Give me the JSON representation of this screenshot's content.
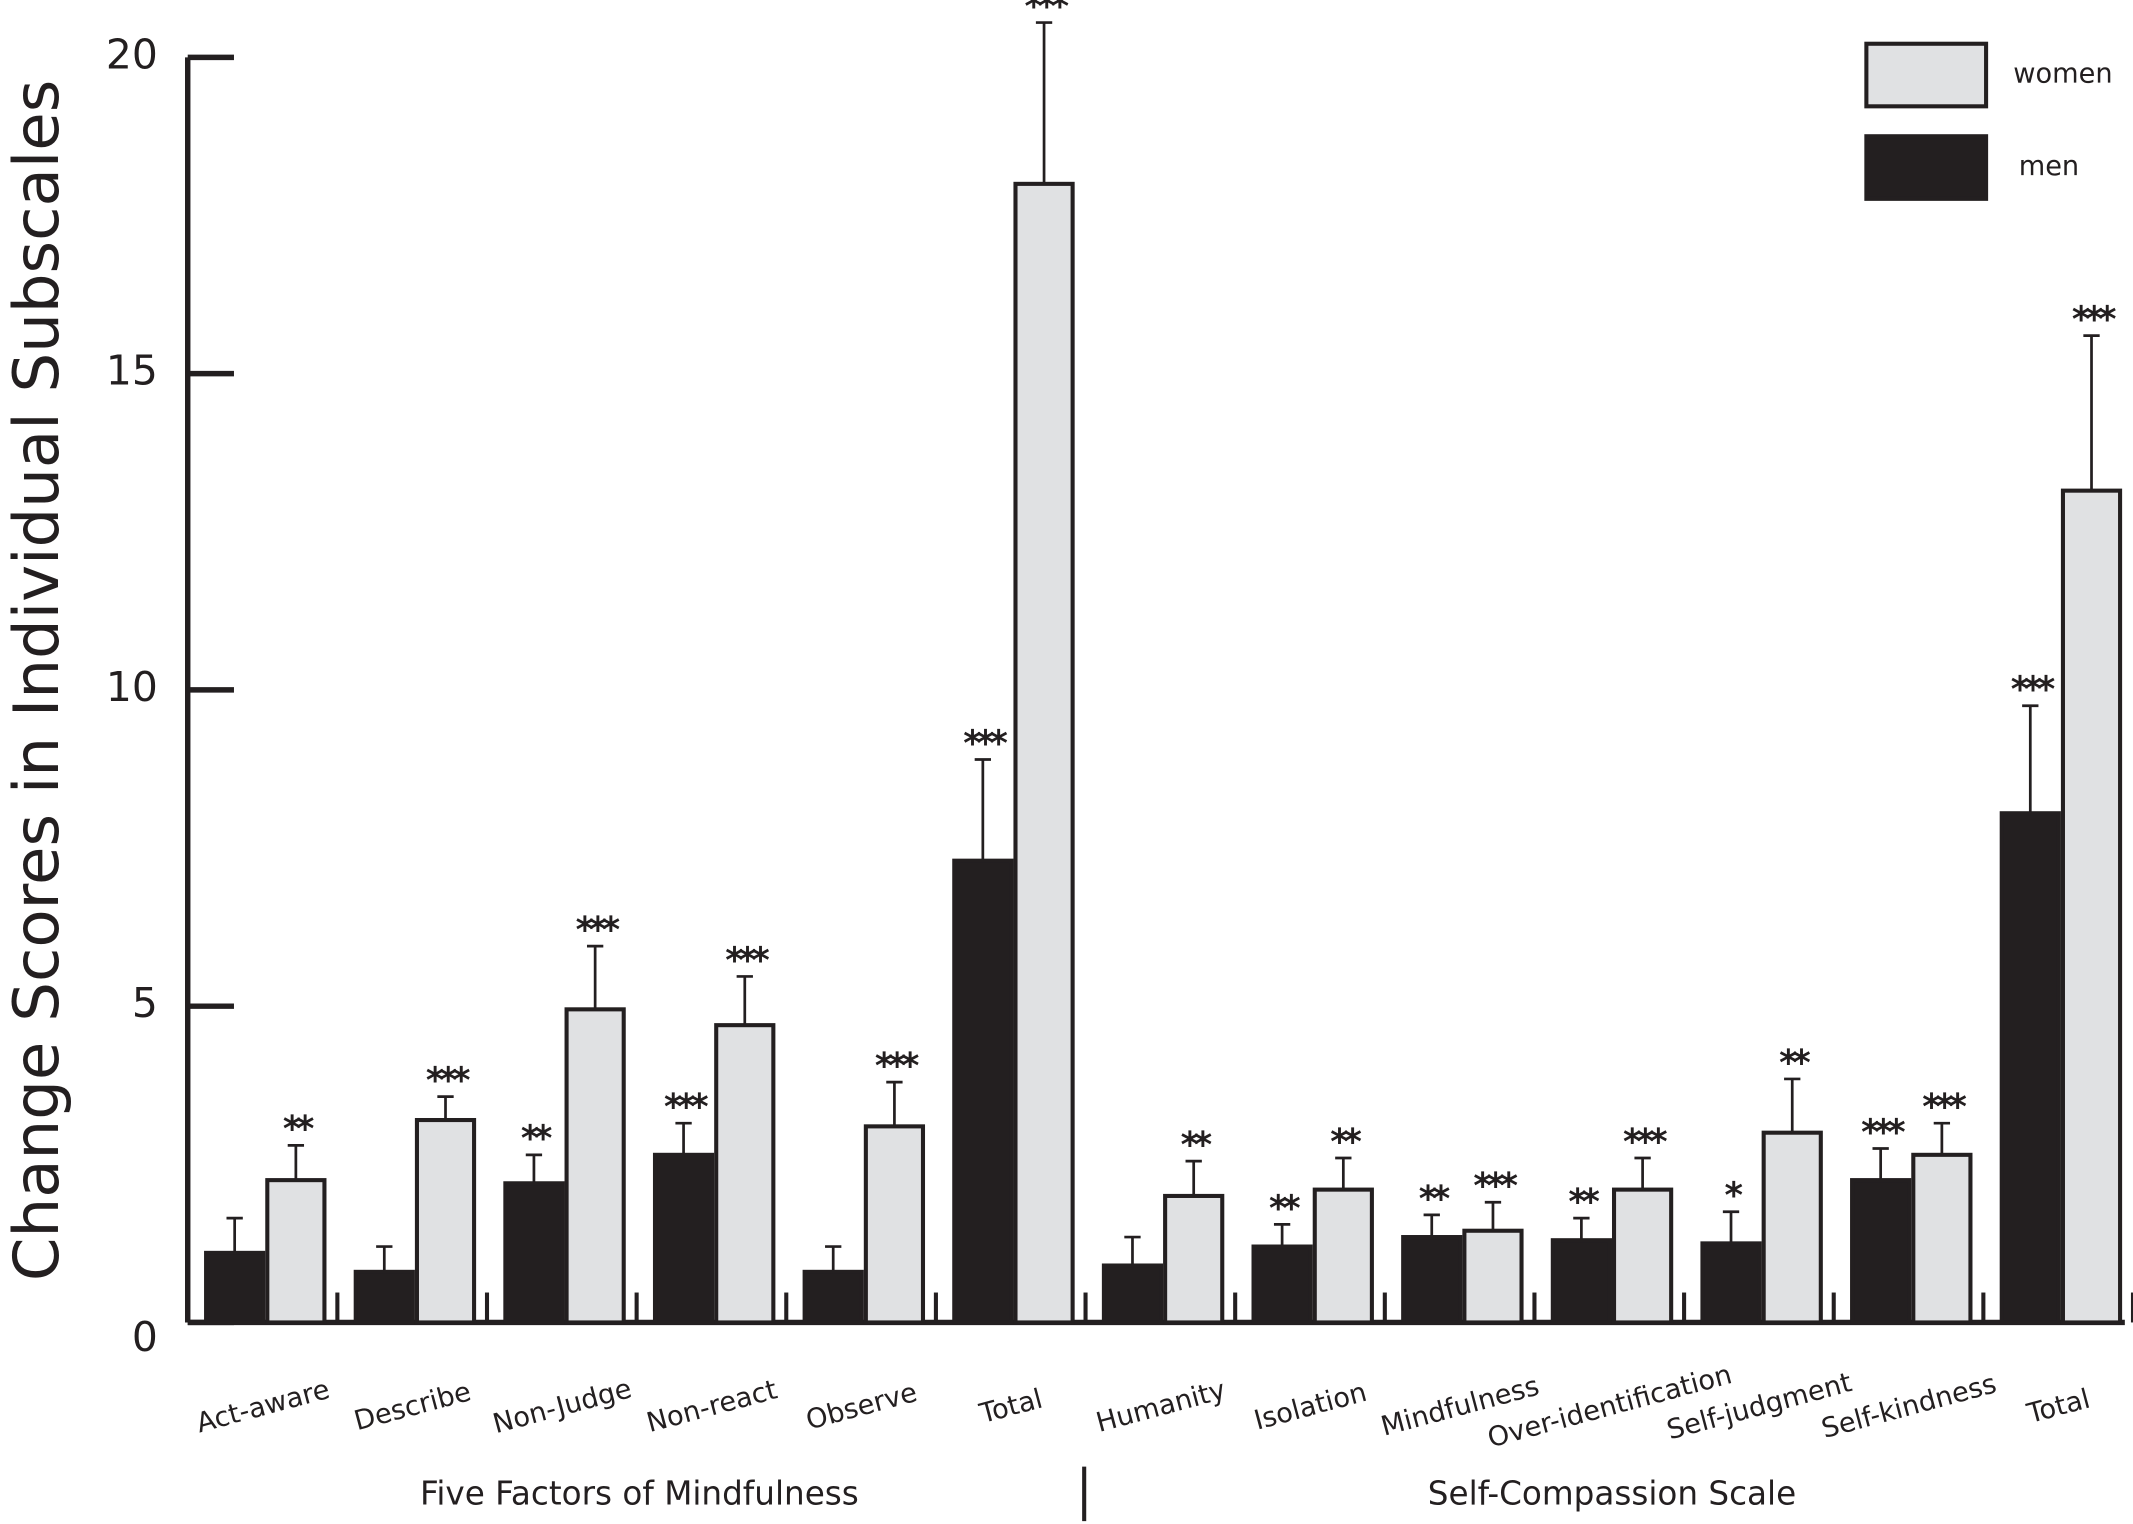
{
  "chart_data": {
    "type": "bar",
    "y_label": "Change Scores in Individual Subscales",
    "categories": [
      "Act-aware",
      "Describe",
      "Non-Judge",
      "Non-react",
      "Observe",
      "Total",
      "Humanity",
      "Isolation",
      "Mindfulness",
      "Over-identification",
      "Self-judgment",
      "Self-kindness",
      "Total"
    ],
    "category_groups": [
      {
        "label": "Five Factors of Mindfulness",
        "count": 6
      },
      {
        "label": "Self-Compassion Scale",
        "count": 7
      }
    ],
    "series": [
      {
        "name": "men",
        "color": "#231f20",
        "values": [
          1.1,
          0.8,
          2.2,
          2.65,
          0.8,
          7.3,
          0.9,
          1.2,
          1.35,
          1.3,
          1.25,
          2.25,
          8.05
        ],
        "errors": [
          0.55,
          0.4,
          0.45,
          0.5,
          0.4,
          1.6,
          0.45,
          0.35,
          0.35,
          0.35,
          0.5,
          0.5,
          1.7
        ],
        "significance": [
          null,
          null,
          "**",
          "***",
          null,
          "***",
          null,
          "**",
          "**",
          "**",
          "*",
          "***",
          "***"
        ]
      },
      {
        "name": "women",
        "color": "#e0e1e3",
        "values": [
          2.25,
          3.2,
          4.95,
          4.7,
          3.1,
          18,
          2.0,
          2.1,
          1.45,
          2.1,
          3.0,
          2.65,
          13.15
        ],
        "errors": [
          0.55,
          0.37,
          1.0,
          0.77,
          0.7,
          2.55,
          0.55,
          0.5,
          0.45,
          0.5,
          0.85,
          0.5,
          2.45
        ],
        "significance": [
          "**",
          "***",
          "***",
          "***",
          "***",
          "***",
          "**",
          "**",
          "***",
          "***",
          "**",
          "***",
          "***"
        ]
      }
    ],
    "ylim": [
      0,
      20
    ],
    "yticks": [
      0,
      5,
      10,
      15,
      20
    ],
    "grid": false,
    "legend": "upper right"
  }
}
